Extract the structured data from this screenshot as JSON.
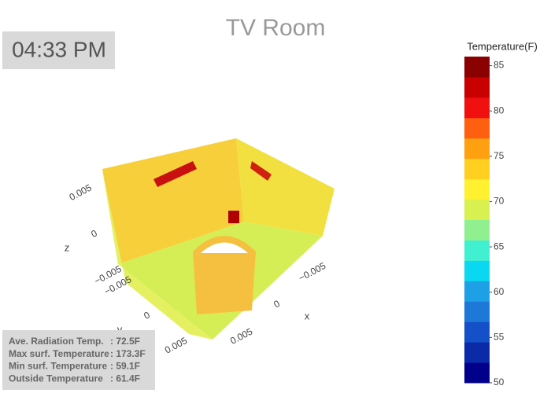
{
  "chart_data": {
    "type": "surface3d",
    "title": "TV Room",
    "clock": "04:33 PM",
    "colorbar": {
      "title": "Temperature(F)",
      "lim": [
        50,
        86
      ],
      "ticks": [
        50,
        55,
        60,
        65,
        70,
        75,
        80,
        85
      ],
      "colorscale": [
        "#00008b",
        "#0a2aa8",
        "#1450c8",
        "#1e78d8",
        "#1ea0e6",
        "#0ad8f0",
        "#40f0d0",
        "#90f090",
        "#d8f050",
        "#fff030",
        "#ffd020",
        "#ffa010",
        "#ff6010",
        "#f01010",
        "#c80000",
        "#8b0000"
      ]
    },
    "xaxis": {
      "title": "x",
      "lim": [
        -0.008,
        0.008
      ],
      "ticks": [
        {
          "value": -0.005,
          "label": "−0.005"
        },
        0,
        0.005
      ]
    },
    "yaxis": {
      "title": "y",
      "lim": [
        -0.008,
        0.008
      ],
      "ticks": [
        {
          "value": -0.005,
          "label": "−0.005"
        },
        0,
        0.005
      ]
    },
    "zaxis": {
      "title": "z",
      "lim": [
        -0.008,
        0.008
      ],
      "ticks": [
        {
          "value": -0.005,
          "label": "−0.005"
        },
        0,
        0.005
      ]
    },
    "info_panel": [
      {
        "label": "Ave. Radiation Temp.",
        "value": ": 72.5F"
      },
      {
        "label": "Max surf. Temperature",
        "value": ": 173.3F"
      },
      {
        "label": "Min surf. Temperature",
        "value": ": 59.1F"
      },
      {
        "label": "Outside Temperature",
        "value": ": 61.4F"
      }
    ]
  }
}
